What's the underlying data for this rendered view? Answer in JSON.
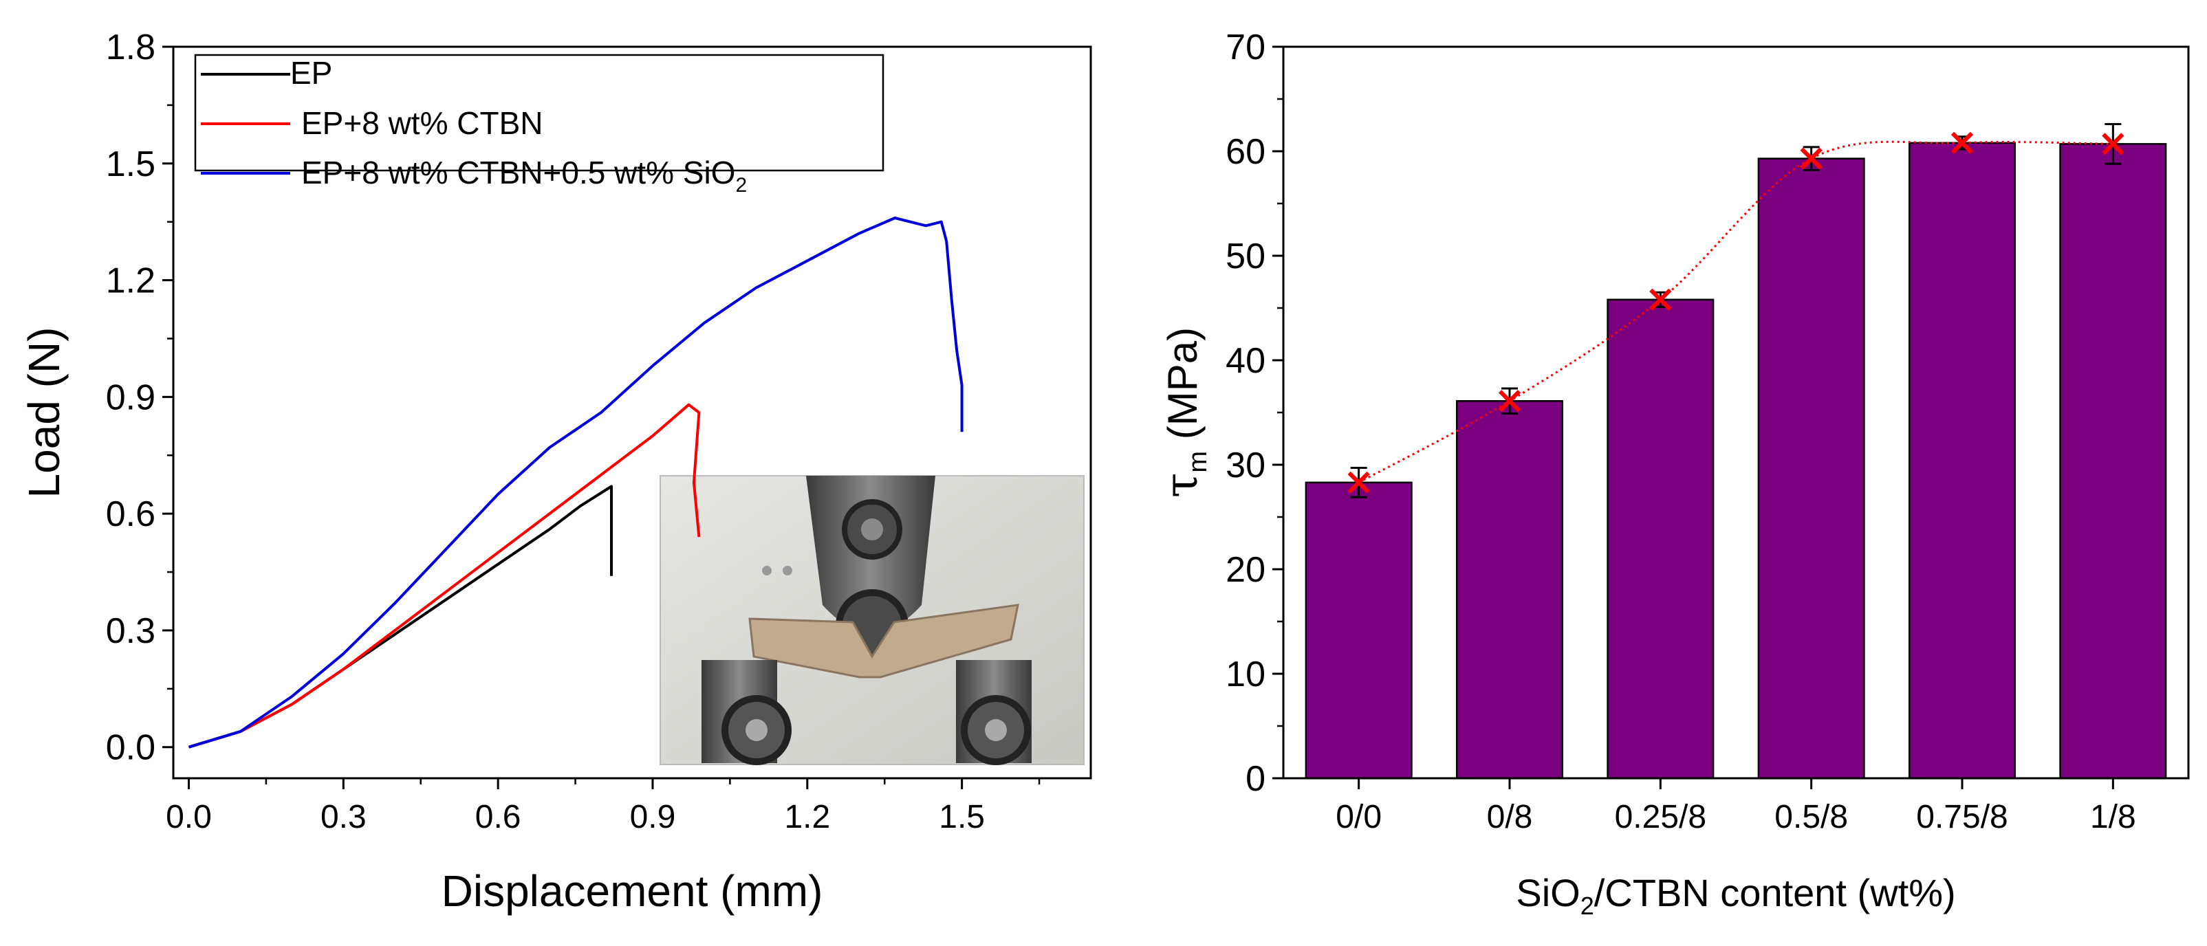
{
  "chart_data": [
    {
      "type": "line",
      "xlabel": "Displacement (mm)",
      "ylabel": "Load (N)",
      "xlim": [
        -0.03,
        1.75
      ],
      "ylim": [
        -0.08,
        1.8
      ],
      "xticks": [
        0.0,
        0.3,
        0.6,
        0.9,
        1.2,
        1.5
      ],
      "yticks": [
        0.0,
        0.3,
        0.6,
        0.9,
        1.2,
        1.5,
        1.8
      ],
      "xtick_labels": [
        "0.0",
        "0.3",
        "0.6",
        "0.9",
        "1.2",
        "1.5"
      ],
      "ytick_labels": [
        "0.0",
        "0.3",
        "0.6",
        "0.9",
        "1.2",
        "1.5",
        "1.8"
      ],
      "legend_position": "top-left",
      "series": [
        {
          "name": "EP",
          "color": "#000000",
          "points": [
            [
              0,
              0
            ],
            [
              0.1,
              0.04
            ],
            [
              0.2,
              0.11
            ],
            [
              0.3,
              0.2
            ],
            [
              0.4,
              0.29
            ],
            [
              0.5,
              0.38
            ],
            [
              0.6,
              0.47
            ],
            [
              0.7,
              0.56
            ],
            [
              0.76,
              0.62
            ],
            [
              0.82,
              0.67
            ],
            [
              0.82,
              0.44
            ]
          ]
        },
        {
          "name": "EP+8 wt% CTBN",
          "color": "#ff0000",
          "points": [
            [
              0,
              0
            ],
            [
              0.1,
              0.04
            ],
            [
              0.2,
              0.11
            ],
            [
              0.3,
              0.2
            ],
            [
              0.4,
              0.3
            ],
            [
              0.5,
              0.4
            ],
            [
              0.6,
              0.5
            ],
            [
              0.7,
              0.6
            ],
            [
              0.8,
              0.7
            ],
            [
              0.9,
              0.8
            ],
            [
              0.97,
              0.88
            ],
            [
              0.99,
              0.86
            ],
            [
              0.98,
              0.68
            ],
            [
              0.99,
              0.54
            ]
          ]
        },
        {
          "name": "EP+8 wt% CTBN+0.5 wt% SiO",
          "name_subscript": "2",
          "color": "#0000dd",
          "points": [
            [
              0,
              0
            ],
            [
              0.1,
              0.04
            ],
            [
              0.2,
              0.13
            ],
            [
              0.3,
              0.24
            ],
            [
              0.4,
              0.37
            ],
            [
              0.5,
              0.51
            ],
            [
              0.6,
              0.65
            ],
            [
              0.7,
              0.77
            ],
            [
              0.8,
              0.86
            ],
            [
              0.9,
              0.98
            ],
            [
              1.0,
              1.09
            ],
            [
              1.1,
              1.18
            ],
            [
              1.2,
              1.25
            ],
            [
              1.3,
              1.32
            ],
            [
              1.37,
              1.36
            ],
            [
              1.4,
              1.35
            ],
            [
              1.43,
              1.34
            ],
            [
              1.46,
              1.35
            ],
            [
              1.47,
              1.3
            ],
            [
              1.48,
              1.15
            ],
            [
              1.49,
              1.02
            ],
            [
              1.5,
              0.93
            ],
            [
              1.5,
              0.81
            ]
          ]
        }
      ]
    },
    {
      "type": "bar",
      "categories": [
        "0/0",
        "0/8",
        "0.25/8",
        "0.5/8",
        "0.75/8",
        "1/8"
      ],
      "values": [
        28.3,
        36.1,
        45.8,
        59.3,
        60.8,
        60.7
      ],
      "errors": [
        1.4,
        1.2,
        0.7,
        1.1,
        0.6,
        1.9
      ],
      "bar_color": "#7a0080",
      "marker_color": "#ff0000",
      "fit_line": "dotted spline through bar means",
      "ylim": [
        0,
        70
      ],
      "yticks": [
        0,
        10,
        20,
        30,
        40,
        50,
        60,
        70
      ],
      "ytick_labels": [
        "0",
        "10",
        "20",
        "30",
        "40",
        "50",
        "60",
        "70"
      ],
      "ylabel_symbol": "τ",
      "ylabel_subscript": "m",
      "ylabel_unit": " (MPa)",
      "xlabel_prefix": "SiO",
      "xlabel_subscript": "2",
      "xlabel_suffix": "/CTBN content (wt%)"
    }
  ]
}
